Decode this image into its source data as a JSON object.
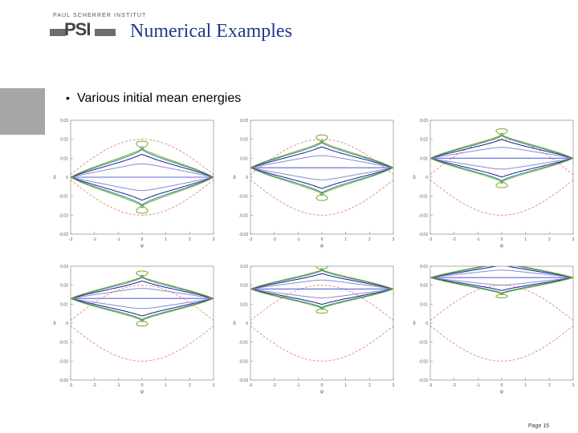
{
  "header": {
    "institute": "PAUL SCHERRER INSTITUT",
    "logo_mark": "PSI",
    "title": "Numerical Examples"
  },
  "bullet_text": "Various initial mean energies",
  "footer": {
    "page": "Page 15"
  },
  "colors": {
    "title": "#1f3a8a",
    "separatrix": "#e07a74",
    "navy": "#1b1b8a",
    "teal": "#1f8aa6",
    "olive": "#7ea51f",
    "lavender": "#8a8ad0",
    "bluehoriz": "#5a6ad8",
    "grid_square": "#a6a6a6"
  },
  "chart_data": [
    {
      "type": "line",
      "panel": 1,
      "xlim": [
        -3,
        3
      ],
      "ylim": [
        -0.03,
        0.03
      ],
      "xlabel": "φ",
      "ylabel": "δ",
      "xticks": [
        "-3",
        "-2",
        "-1",
        "0",
        "1",
        "2",
        "3"
      ],
      "yticks": [
        "-0.03",
        "-0.02",
        "-0.01",
        "0",
        "0.01",
        "0.02",
        "0.03"
      ],
      "mean_energy": 0.0,
      "series": [
        {
          "color_key": "separatrix",
          "dashed": true,
          "values_description": "separatrix"
        },
        {
          "color_key": "lavender",
          "amplitude": 0.01
        },
        {
          "color_key": "navy",
          "amplitude": 0.017
        },
        {
          "color_key": "teal",
          "amplitude": 0.019
        },
        {
          "color_key": "olive",
          "amplitude": 0.02
        }
      ]
    },
    {
      "type": "line",
      "panel": 2,
      "xlim": [
        -3,
        3
      ],
      "ylim": [
        -0.03,
        0.03
      ],
      "xlabel": "φ",
      "ylabel": "δ",
      "xticks": [
        "-3",
        "-2",
        "-1",
        "0",
        "1",
        "2",
        "3"
      ],
      "yticks": [
        "-0.03",
        "-0.02",
        "-0.01",
        "0",
        "0.01",
        "0.02",
        "0.03"
      ],
      "mean_energy": 0.005
    },
    {
      "type": "line",
      "panel": 3,
      "xlim": [
        -3,
        3
      ],
      "ylim": [
        -0.03,
        0.03
      ],
      "xlabel": "φ",
      "ylabel": "δ",
      "xticks": [
        "-3",
        "-2",
        "-1",
        "0",
        "1",
        "2",
        "3"
      ],
      "yticks": [
        "-0.03",
        "-0.02",
        "-0.01",
        "0",
        "0.01",
        "0.02",
        "0.03"
      ],
      "mean_energy": 0.01
    },
    {
      "type": "line",
      "panel": 4,
      "xlim": [
        -3,
        3
      ],
      "ylim": [
        -0.03,
        0.03
      ],
      "xlabel": "φ",
      "ylabel": "δ",
      "xticks": [
        "-3",
        "-2",
        "-1",
        "0",
        "1",
        "2",
        "3"
      ],
      "yticks": [
        "-0.03",
        "-0.02",
        "-0.01",
        "0",
        "0.01",
        "0.02",
        "0.03"
      ],
      "mean_energy": 0.013
    },
    {
      "type": "line",
      "panel": 5,
      "xlim": [
        -3,
        3
      ],
      "ylim": [
        -0.03,
        0.03
      ],
      "xlabel": "φ",
      "ylabel": "δ",
      "xticks": [
        "-3",
        "-2",
        "-1",
        "0",
        "1",
        "2",
        "3"
      ],
      "yticks": [
        "-0.03",
        "-0.02",
        "-0.01",
        "0",
        "0.01",
        "0.02",
        "0.03"
      ],
      "mean_energy": 0.018
    },
    {
      "type": "line",
      "panel": 6,
      "xlim": [
        -3,
        3
      ],
      "ylim": [
        -0.03,
        0.03
      ],
      "xlabel": "φ",
      "ylabel": "δ",
      "xticks": [
        "-3",
        "-2",
        "-1",
        "0",
        "1",
        "2",
        "3"
      ],
      "yticks": [
        "-0.03",
        "-0.02",
        "-0.01",
        "0",
        "0.01",
        "0.02",
        "0.03"
      ],
      "mean_energy": 0.024
    }
  ]
}
